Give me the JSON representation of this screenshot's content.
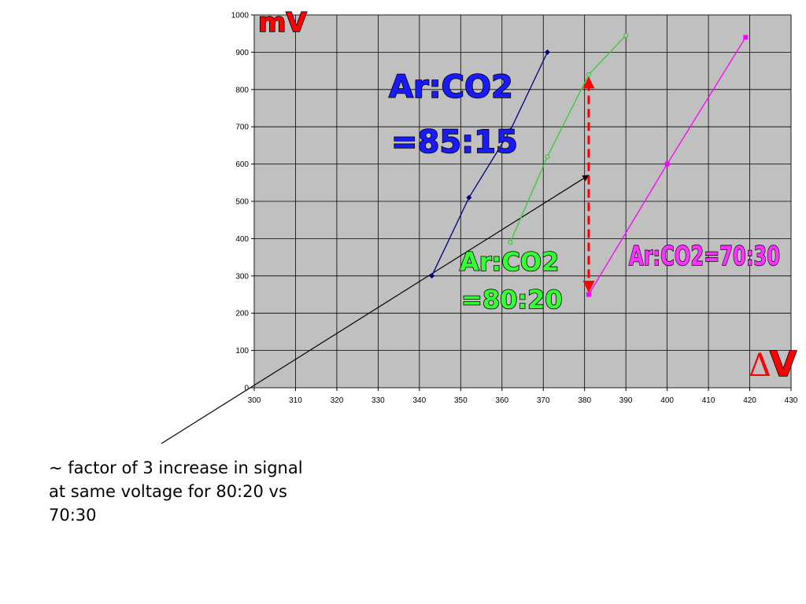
{
  "chart_data": {
    "type": "line",
    "xlim": [
      300,
      430
    ],
    "ylim": [
      0,
      1000
    ],
    "x_ticks": [
      300,
      310,
      320,
      330,
      340,
      350,
      360,
      370,
      380,
      390,
      400,
      410,
      420,
      430
    ],
    "y_ticks": [
      0,
      100,
      200,
      300,
      400,
      500,
      600,
      700,
      800,
      900,
      1000
    ],
    "grid": true,
    "ylabel": "mV",
    "xlabel": "ΔV",
    "series": [
      {
        "name": "Ar:CO2 =85:15",
        "color": "#000080",
        "marker": "diamond",
        "points": [
          [
            343,
            300
          ],
          [
            352,
            510
          ],
          [
            362,
            690
          ],
          [
            371,
            900
          ]
        ]
      },
      {
        "name": "Ar:CO2 =80:20",
        "color": "#33cc33",
        "marker": "circle",
        "points": [
          [
            362,
            390
          ],
          [
            371,
            620
          ],
          [
            381,
            840
          ],
          [
            390,
            945
          ]
        ]
      },
      {
        "name": "Ar:CO2=70:30",
        "color": "#ff00ff",
        "marker": "square",
        "points": [
          [
            381,
            250
          ],
          [
            400,
            600
          ],
          [
            419,
            940
          ]
        ]
      }
    ],
    "annotations": {
      "label_85_15_line1": "Ar:CO2",
      "label_85_15_line2": "=85:15",
      "label_80_20_line1": "Ar:CO2",
      "label_80_20_line2": "=80:20",
      "label_70_30": "Ar:CO2=70:30",
      "y_unit": "mV",
      "x_delta_symbol": "Δ",
      "x_unit": "V",
      "comparison_arrow": {
        "x": 381,
        "y_from": 250,
        "y_to": 840,
        "color": "#ff0000"
      },
      "pointer_arrow": {
        "to": [
          381,
          570
        ]
      }
    }
  },
  "note": "~ factor of 3 increase in signal at same voltage for 80:20 vs 70:30"
}
